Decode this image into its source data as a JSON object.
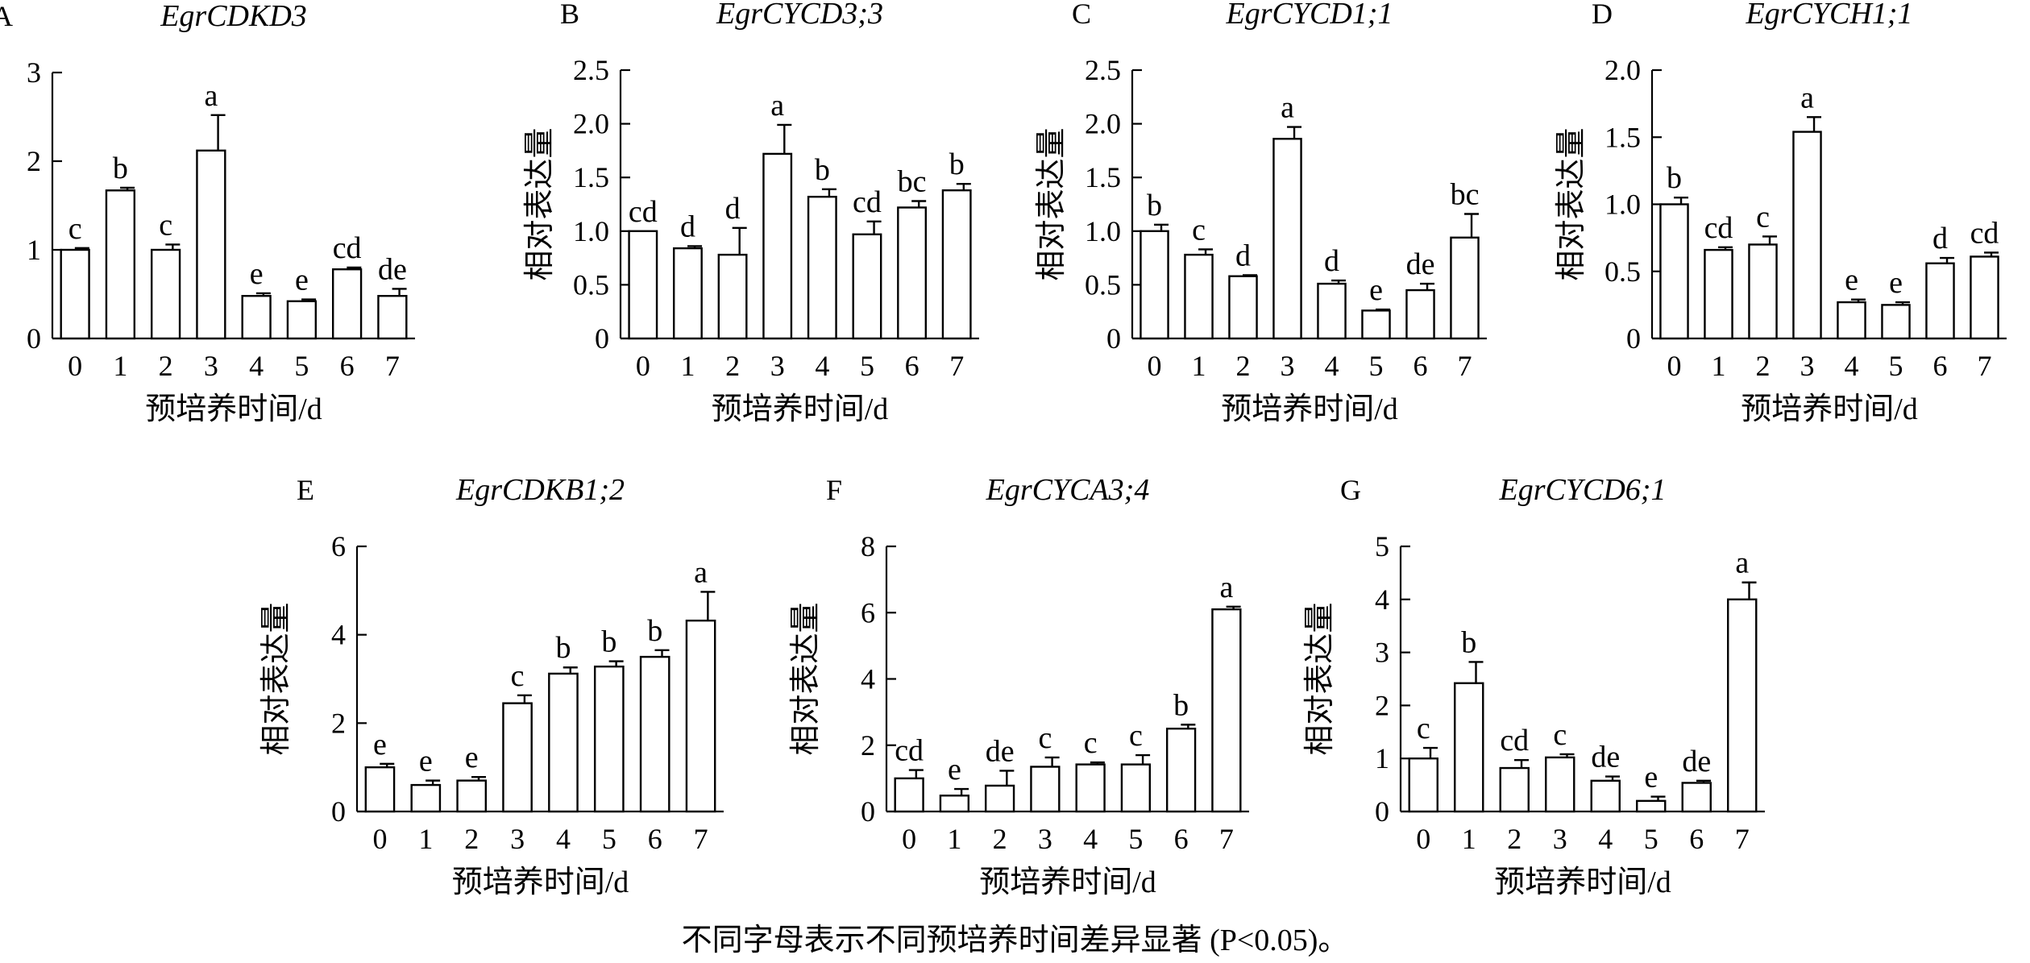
{
  "footnote": "不同字母表示不同预培养时间差异显著 (P<0.05)。",
  "chart_data": [
    {
      "panel": "A",
      "type": "bar",
      "title": "EgrCDKD3",
      "xlabel": "预培养时间/d",
      "ylabel": "相对表达量",
      "categories": [
        "0",
        "1",
        "2",
        "3",
        "4",
        "5",
        "6",
        "7"
      ],
      "values": [
        1.0,
        1.67,
        1.0,
        2.12,
        0.48,
        0.42,
        0.78,
        0.48
      ],
      "errors": [
        0.02,
        0.03,
        0.06,
        0.4,
        0.03,
        0.02,
        0.02,
        0.08
      ],
      "labels": [
        "c",
        "b",
        "c",
        "a",
        "e",
        "e",
        "cd",
        "de"
      ],
      "ylim": [
        0,
        3
      ],
      "yticks": [
        "0",
        "1",
        "2",
        "3"
      ]
    },
    {
      "panel": "B",
      "type": "bar",
      "title": "EgrCYCD3;3",
      "xlabel": "预培养时间/d",
      "ylabel": "相对表达量",
      "categories": [
        "0",
        "1",
        "2",
        "3",
        "4",
        "5",
        "6",
        "7"
      ],
      "values": [
        1.0,
        0.84,
        0.78,
        1.72,
        1.32,
        0.97,
        1.22,
        1.38
      ],
      "errors": [
        0.0,
        0.02,
        0.25,
        0.27,
        0.07,
        0.12,
        0.06,
        0.06
      ],
      "labels": [
        "cd",
        "d",
        "d",
        "a",
        "b",
        "cd",
        "bc",
        "b"
      ],
      "ylim": [
        0,
        2.5
      ],
      "yticks": [
        "0",
        "0.5",
        "1.0",
        "1.5",
        "2.0",
        "2.5"
      ]
    },
    {
      "panel": "C",
      "type": "bar",
      "title": "EgrCYCD1;1",
      "xlabel": "预培养时间/d",
      "ylabel": "相对表达量",
      "categories": [
        "0",
        "1",
        "2",
        "3",
        "4",
        "5",
        "6",
        "7"
      ],
      "values": [
        1.0,
        0.78,
        0.58,
        1.86,
        0.51,
        0.26,
        0.45,
        0.94
      ],
      "errors": [
        0.06,
        0.05,
        0.01,
        0.11,
        0.03,
        0.01,
        0.06,
        0.22
      ],
      "labels": [
        "b",
        "c",
        "d",
        "a",
        "d",
        "e",
        "de",
        "bc"
      ],
      "ylim": [
        0,
        2.5
      ],
      "yticks": [
        "0",
        "0.5",
        "1.0",
        "1.5",
        "2.0",
        "2.5"
      ]
    },
    {
      "panel": "D",
      "type": "bar",
      "title": "EgrCYCH1;1",
      "xlabel": "预培养时间/d",
      "ylabel": "相对表达量",
      "categories": [
        "0",
        "1",
        "2",
        "3",
        "4",
        "5",
        "6",
        "7"
      ],
      "values": [
        1.0,
        0.66,
        0.7,
        1.54,
        0.27,
        0.25,
        0.56,
        0.61
      ],
      "errors": [
        0.05,
        0.02,
        0.06,
        0.11,
        0.02,
        0.02,
        0.04,
        0.03
      ],
      "labels": [
        "b",
        "cd",
        "c",
        "a",
        "e",
        "e",
        "d",
        "cd"
      ],
      "ylim": [
        0,
        2.0
      ],
      "yticks": [
        "0",
        "0.5",
        "1.0",
        "1.5",
        "2.0"
      ]
    },
    {
      "panel": "E",
      "type": "bar",
      "title": "EgrCDKB1;2",
      "xlabel": "预培养时间/d",
      "ylabel": "相对表达量",
      "categories": [
        "0",
        "1",
        "2",
        "3",
        "4",
        "5",
        "6",
        "7"
      ],
      "values": [
        1.0,
        0.6,
        0.7,
        2.45,
        3.12,
        3.28,
        3.5,
        4.32
      ],
      "errors": [
        0.08,
        0.1,
        0.08,
        0.18,
        0.14,
        0.12,
        0.15,
        0.65
      ],
      "labels": [
        "e",
        "e",
        "e",
        "c",
        "b",
        "b",
        "b",
        "a"
      ],
      "ylim": [
        0,
        6
      ],
      "yticks": [
        "0",
        "2",
        "4",
        "6"
      ]
    },
    {
      "panel": "F",
      "type": "bar",
      "title": "EgrCYCA3;4",
      "xlabel": "预培养时间/d",
      "ylabel": "相对表达量",
      "categories": [
        "0",
        "1",
        "2",
        "3",
        "4",
        "5",
        "6",
        "7"
      ],
      "values": [
        1.0,
        0.48,
        0.78,
        1.35,
        1.42,
        1.42,
        2.5,
        6.1
      ],
      "errors": [
        0.25,
        0.2,
        0.45,
        0.28,
        0.06,
        0.28,
        0.12,
        0.08
      ],
      "labels": [
        "cd",
        "e",
        "de",
        "c",
        "c",
        "c",
        "b",
        "a"
      ],
      "ylim": [
        0,
        8
      ],
      "yticks": [
        "0",
        "2",
        "4",
        "6",
        "8"
      ]
    },
    {
      "panel": "G",
      "type": "bar",
      "title": "EgrCYCD6;1",
      "xlabel": "预培养时间/d",
      "ylabel": "相对表达量",
      "categories": [
        "0",
        "1",
        "2",
        "3",
        "4",
        "5",
        "6",
        "7"
      ],
      "values": [
        1.0,
        2.42,
        0.82,
        1.02,
        0.58,
        0.2,
        0.54,
        4.0
      ],
      "errors": [
        0.2,
        0.4,
        0.15,
        0.06,
        0.08,
        0.08,
        0.04,
        0.32
      ],
      "labels": [
        "c",
        "b",
        "cd",
        "c",
        "de",
        "e",
        "de",
        "a"
      ],
      "ylim": [
        0,
        5
      ],
      "yticks": [
        "0",
        "1",
        "2",
        "3",
        "4",
        "5"
      ]
    }
  ]
}
